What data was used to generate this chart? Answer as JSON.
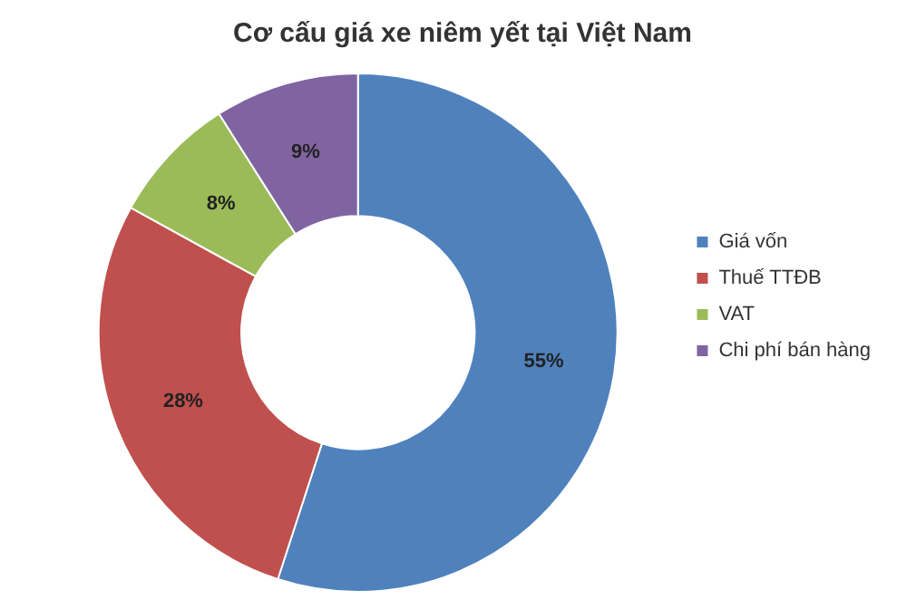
{
  "chart_data": {
    "type": "donut",
    "title": "Cơ cấu giá xe niêm yết tại Việt Nam",
    "categories": [
      "Giá vốn",
      "Thuế TTĐB",
      "VAT",
      "Chi phí bán hàng"
    ],
    "values": [
      55,
      28,
      8,
      9
    ],
    "colors": [
      "#4f81bd",
      "#c0504d",
      "#9bbb59",
      "#8064a2"
    ],
    "value_labels": [
      "55%",
      "28%",
      "8%",
      "9%"
    ],
    "legend": "right"
  }
}
